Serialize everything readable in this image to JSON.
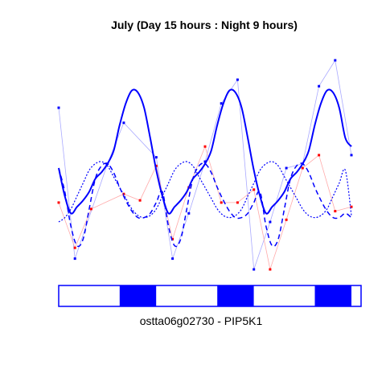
{
  "chart_data": {
    "type": "line",
    "title": "July (Day 15 hours : Night 9 hours)",
    "caption": "ostta06g02730 - PIP5K1",
    "xlabel": "",
    "ylabel": "",
    "x_range": [
      0,
      72
    ],
    "y_range": [
      0,
      1
    ],
    "grid": false,
    "legend": "none",
    "colors": {
      "blue": "#0000ff",
      "red": "#ff0000",
      "light_blue": "#aaaaff",
      "light_red": "#ffaaaa"
    },
    "series": [
      {
        "style": "thin-line-with-points",
        "color": "#0000ff",
        "x": [
          0,
          4,
          12,
          16,
          24,
          28,
          32,
          36,
          40,
          44,
          48,
          52,
          56,
          60,
          64,
          68,
          72
        ],
        "y": [
          0.78,
          0.08,
          0.52,
          0.71,
          0.55,
          0.08,
          0.29,
          0.53,
          0.8,
          0.91,
          0.03,
          0.25,
          0.5,
          0.52,
          0.88,
          1.0,
          0.56
        ]
      },
      {
        "style": "thin-line-with-points",
        "color": "#ff0000",
        "x": [
          0,
          4,
          8,
          16,
          20,
          24,
          28,
          32,
          36,
          40,
          44,
          48,
          52,
          56,
          60,
          64,
          68,
          72
        ],
        "y": [
          0.34,
          0.13,
          0.31,
          0.38,
          0.35,
          0.51,
          0.17,
          0.41,
          0.6,
          0.34,
          0.34,
          0.4,
          0.03,
          0.26,
          0.5,
          0.56,
          0.3,
          0.32
        ]
      },
      {
        "style": "smooth-solid",
        "color": "#0000ff",
        "x": [
          0,
          1.5,
          3,
          4.5,
          6,
          7.5,
          9,
          10.5,
          12,
          13.5,
          15,
          16.5,
          18,
          19.5,
          21,
          22.5,
          24,
          25.5,
          27,
          28.5,
          30,
          31.5,
          33,
          34.5,
          36,
          37.5,
          39,
          40.5,
          42,
          43.5,
          45,
          46.5,
          48,
          49.5,
          51,
          52.5,
          54,
          55.5,
          57,
          58.5,
          60,
          61.5,
          63,
          64.5,
          66,
          67.5,
          69,
          70.5,
          72
        ],
        "y": [
          0.5,
          0.37,
          0.29,
          0.32,
          0.35,
          0.39,
          0.45,
          0.48,
          0.52,
          0.58,
          0.7,
          0.8,
          0.86,
          0.85,
          0.78,
          0.64,
          0.49,
          0.37,
          0.29,
          0.32,
          0.35,
          0.39,
          0.45,
          0.48,
          0.52,
          0.58,
          0.7,
          0.8,
          0.86,
          0.85,
          0.78,
          0.64,
          0.49,
          0.37,
          0.29,
          0.32,
          0.35,
          0.39,
          0.45,
          0.48,
          0.52,
          0.58,
          0.7,
          0.8,
          0.86,
          0.85,
          0.78,
          0.64,
          0.6
        ]
      },
      {
        "style": "smooth-dashed",
        "color": "#0000ff",
        "x": [
          0,
          1.5,
          3,
          4.5,
          6,
          7.5,
          9,
          10.5,
          12,
          13.5,
          15,
          16.5,
          18,
          19.5,
          21,
          22.5,
          24,
          25.5,
          27,
          28.5,
          30,
          31.5,
          33,
          34.5,
          36,
          37.5,
          39,
          40.5,
          42,
          43.5,
          45,
          46.5,
          48,
          49.5,
          51,
          52.5,
          54,
          55.5,
          57,
          58.5,
          60,
          61.5,
          63,
          64.5,
          66,
          67.5,
          69,
          70.5,
          72
        ],
        "y": [
          0.5,
          0.39,
          0.23,
          0.14,
          0.17,
          0.31,
          0.45,
          0.51,
          0.52,
          0.48,
          0.41,
          0.35,
          0.3,
          0.27,
          0.27,
          0.29,
          0.34,
          0.39,
          0.23,
          0.14,
          0.17,
          0.31,
          0.45,
          0.51,
          0.52,
          0.48,
          0.41,
          0.35,
          0.3,
          0.27,
          0.27,
          0.29,
          0.34,
          0.39,
          0.23,
          0.14,
          0.17,
          0.31,
          0.45,
          0.51,
          0.52,
          0.48,
          0.41,
          0.35,
          0.3,
          0.27,
          0.27,
          0.29,
          0.27
        ]
      },
      {
        "style": "smooth-dotted",
        "color": "#0000ff",
        "x": [
          0,
          1.5,
          3,
          4.5,
          6,
          7.5,
          9,
          10.5,
          12,
          13.5,
          15,
          16.5,
          18,
          19.5,
          21,
          22.5,
          24,
          25.5,
          27,
          28.5,
          30,
          31.5,
          33,
          34.5,
          36,
          37.5,
          39,
          40.5,
          42,
          43.5,
          45,
          46.5,
          48,
          49.5,
          51,
          52.5,
          54,
          55.5,
          57,
          58.5,
          60,
          61.5,
          63,
          64.5,
          66,
          67.5,
          69,
          70.5,
          72
        ],
        "y": [
          0.25,
          0.27,
          0.31,
          0.37,
          0.43,
          0.49,
          0.52,
          0.53,
          0.51,
          0.46,
          0.41,
          0.36,
          0.31,
          0.28,
          0.27,
          0.28,
          0.31,
          0.37,
          0.43,
          0.49,
          0.52,
          0.53,
          0.51,
          0.46,
          0.41,
          0.36,
          0.31,
          0.28,
          0.27,
          0.28,
          0.31,
          0.37,
          0.43,
          0.49,
          0.52,
          0.53,
          0.51,
          0.46,
          0.41,
          0.36,
          0.31,
          0.28,
          0.27,
          0.28,
          0.31,
          0.37,
          0.43,
          0.49,
          0.28
        ]
      }
    ],
    "light_dark_bar": {
      "segments": [
        {
          "start": 0,
          "end": 15,
          "state": "light"
        },
        {
          "start": 15,
          "end": 24,
          "state": "dark"
        },
        {
          "start": 24,
          "end": 39,
          "state": "light"
        },
        {
          "start": 39,
          "end": 48,
          "state": "dark"
        },
        {
          "start": 48,
          "end": 63,
          "state": "light"
        },
        {
          "start": 63,
          "end": 72,
          "state": "dark"
        }
      ]
    }
  }
}
